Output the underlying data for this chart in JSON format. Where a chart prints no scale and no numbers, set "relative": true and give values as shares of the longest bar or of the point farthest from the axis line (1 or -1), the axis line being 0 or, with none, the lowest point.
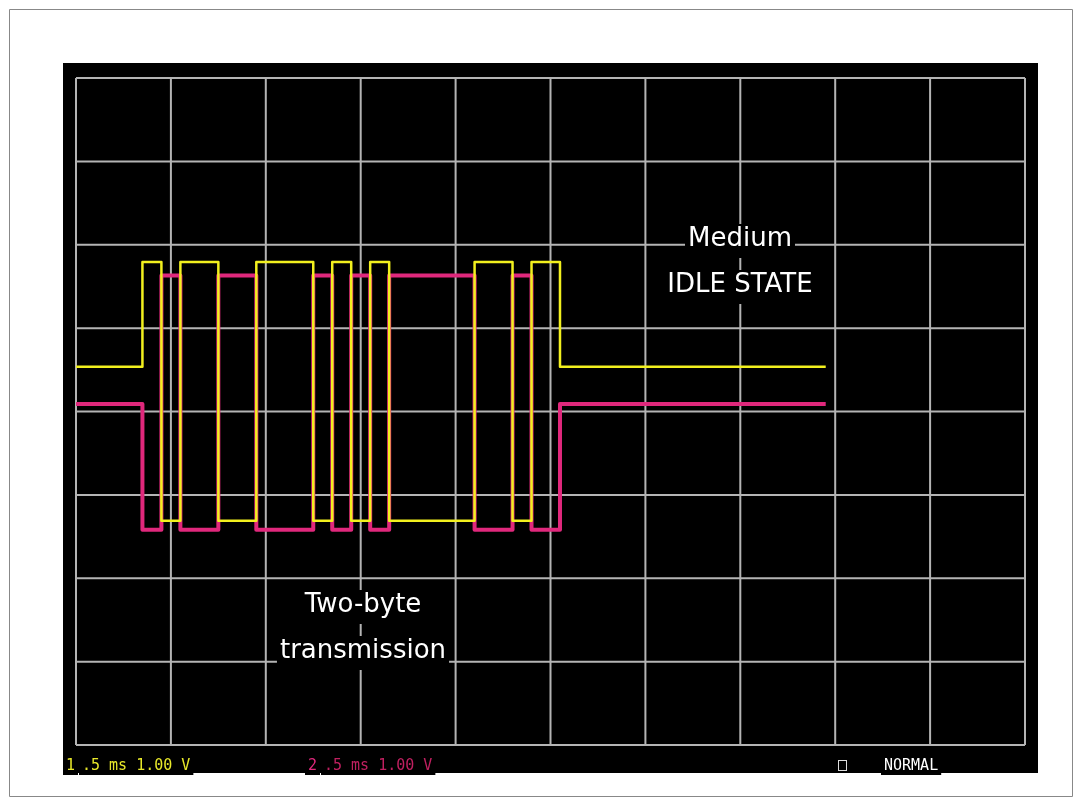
{
  "chart_data": {
    "type": "step",
    "relative": true,
    "grid": true,
    "categories": [
      null,
      null,
      null,
      null,
      null,
      null,
      null,
      null,
      null,
      null,
      null,
      null,
      null,
      null,
      null,
      null,
      null,
      null,
      null,
      null,
      null,
      null,
      null,
      null,
      null,
      null,
      null,
      null,
      null,
      null,
      null,
      null,
      null,
      null,
      null,
      null,
      null,
      null,
      null,
      null,
      null,
      null,
      null,
      null,
      null,
      null,
      null,
      null,
      null,
      null,
      null,
      null,
      null,
      null,
      null,
      null,
      null,
      null,
      null,
      null,
      null,
      null,
      null,
      null,
      null,
      null,
      null,
      null,
      null,
      null,
      null,
      null,
      null,
      null,
      null,
      null,
      null,
      null,
      null,
      null,
      null,
      null,
      null,
      null,
      null,
      null,
      null,
      null,
      null,
      null,
      null,
      null,
      null,
      null,
      null,
      null,
      null,
      null,
      null,
      null,
      null
    ],
    "series": [
      {
        "color": "#f2f01e",
        "values": [
          0.3,
          0.3,
          0.3,
          0.3,
          0.3,
          0.3,
          0.3,
          0.3,
          1,
          1,
          -0.73,
          -0.73,
          1,
          1,
          1,
          1,
          -0.73,
          -0.73,
          -0.73,
          -0.73,
          1,
          1,
          1,
          1,
          1,
          1,
          -0.73,
          -0.73,
          1,
          1,
          -0.73,
          -0.73,
          1,
          1,
          -0.73,
          -0.73,
          -0.73,
          -0.73,
          -0.73,
          -0.73,
          -0.73,
          -0.73,
          -0.73,
          1,
          1,
          1,
          1,
          -0.73,
          -0.73,
          1,
          1,
          1,
          0.3,
          0.3,
          0.3,
          0.3,
          0.3,
          0.3,
          0.3,
          0.3,
          0.3,
          0.3,
          0.3,
          0.3,
          0.3,
          0.3,
          0.3,
          0.3,
          0.3,
          0.3,
          0.3,
          0.3,
          0.3,
          0.3,
          0.3,
          0.3,
          0.3,
          0.3,
          0.3,
          0.3,
          null,
          null,
          null,
          null,
          null,
          null,
          null,
          null,
          null,
          null,
          null,
          null,
          null,
          null,
          null,
          null,
          null,
          null,
          null,
          null,
          null
        ]
      },
      {
        "color": "#e0287c",
        "values": [
          0.05,
          0.05,
          0.05,
          0.05,
          0.05,
          0.05,
          0.05,
          0.05,
          -0.79,
          -0.79,
          0.91,
          0.91,
          -0.79,
          -0.79,
          -0.79,
          -0.79,
          0.91,
          0.91,
          0.91,
          0.91,
          -0.79,
          -0.79,
          -0.79,
          -0.79,
          -0.79,
          -0.79,
          0.91,
          0.91,
          -0.79,
          -0.79,
          0.91,
          0.91,
          -0.79,
          -0.79,
          0.91,
          0.91,
          0.91,
          0.91,
          0.91,
          0.91,
          0.91,
          0.91,
          0.91,
          -0.79,
          -0.79,
          -0.79,
          -0.79,
          0.91,
          0.91,
          -0.79,
          -0.79,
          -0.79,
          0.05,
          0.05,
          0.05,
          0.05,
          0.05,
          0.05,
          0.05,
          0.05,
          0.05,
          0.05,
          0.05,
          0.05,
          0.05,
          0.05,
          0.05,
          0.05,
          0.05,
          0.05,
          0.05,
          0.05,
          0.05,
          0.05,
          0.05,
          0.05,
          0.05,
          0.05,
          0.05,
          0.05,
          null,
          null,
          null,
          null,
          null,
          null,
          null,
          null,
          null,
          null,
          null,
          null,
          null,
          null,
          null,
          null,
          null,
          null,
          null,
          null,
          null
        ]
      }
    ],
    "annotations": [
      "Medium\nIDLE STATE",
      "Two-byte\ntransmission",
      "1",
      ".5 ms 1.00 V",
      "2",
      ".5 ms 1.00 V",
      "NORMAL"
    ]
  }
}
